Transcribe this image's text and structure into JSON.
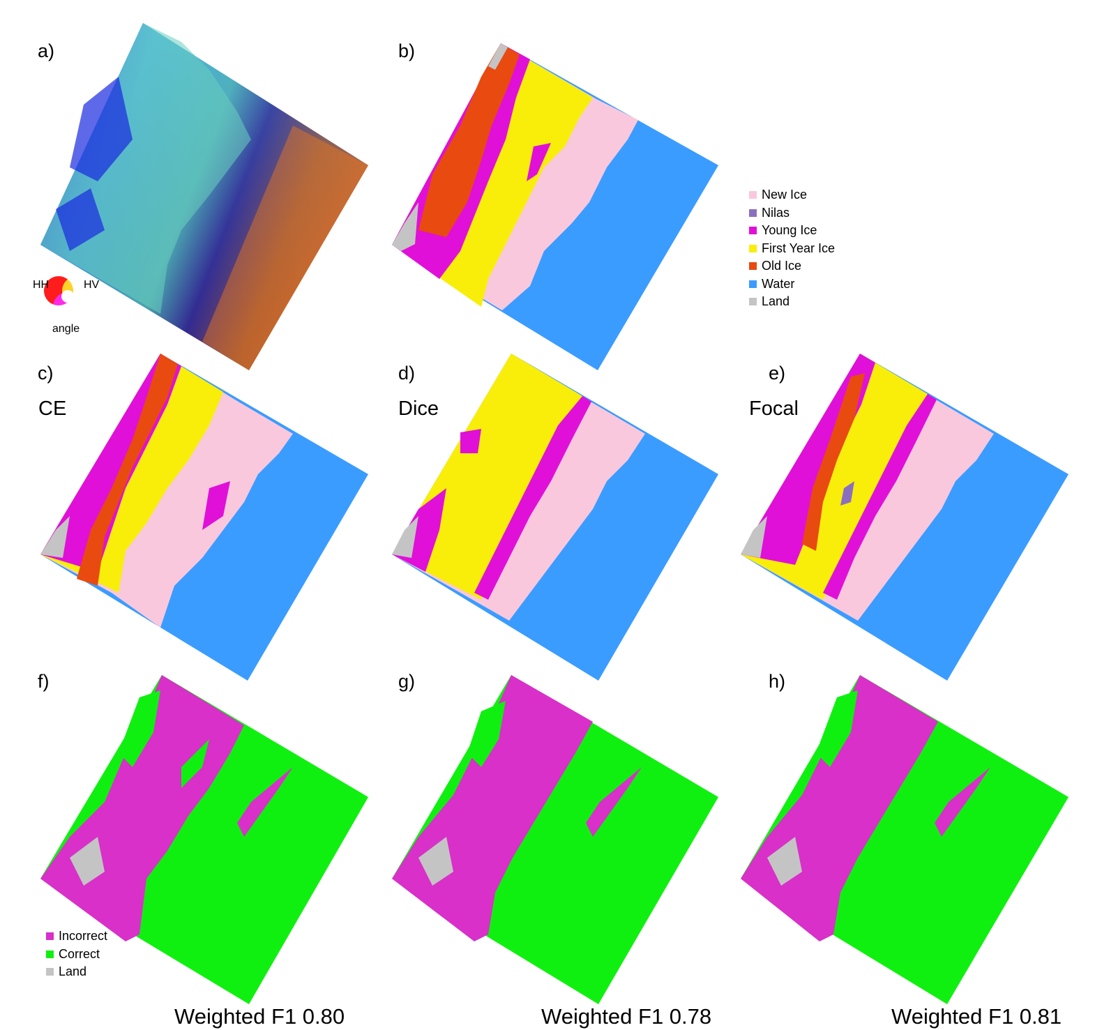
{
  "panels": {
    "a": "a)",
    "b": "b)",
    "c": "c)",
    "d": "d)",
    "e": "e)",
    "f": "f)",
    "g": "g)",
    "h": "h)"
  },
  "loss_names": {
    "c": "CE",
    "d": "Dice",
    "e": "Focal"
  },
  "f1_scores": {
    "f": "Weighted F1 0.80",
    "g": "Weighted F1 0.78",
    "h": "Weighted F1 0.81"
  },
  "rgb_legend": {
    "hh": "HH",
    "hv": "HV",
    "angle": "angle"
  },
  "class_legend": [
    {
      "label": "New Ice",
      "color": "#f9c8dc"
    },
    {
      "label": "Nilas",
      "color": "#8a6fc0"
    },
    {
      "label": "Young Ice",
      "color": "#e010d8"
    },
    {
      "label": "First Year Ice",
      "color": "#f8ee0a"
    },
    {
      "label": "Old Ice",
      "color": "#e84a10"
    },
    {
      "label": "Water",
      "color": "#3a9cff"
    },
    {
      "label": "Land",
      "color": "#c4c4c4"
    }
  ],
  "error_legend": [
    {
      "label": "Incorrect",
      "color": "#d830c8"
    },
    {
      "label": "Correct",
      "color": "#10f010"
    },
    {
      "label": "Land",
      "color": "#c4c4c4"
    }
  ]
}
